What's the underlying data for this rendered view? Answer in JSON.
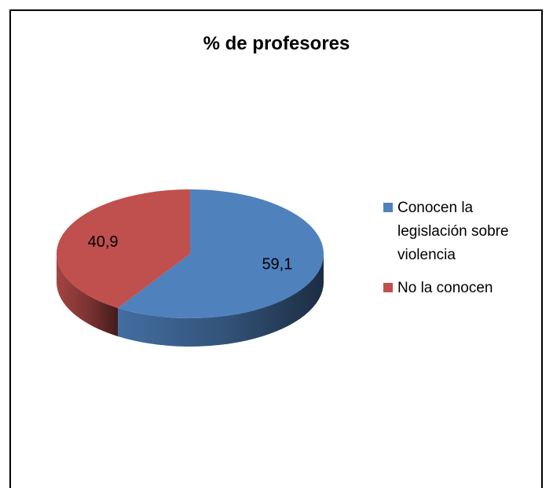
{
  "chart_data": {
    "type": "pie",
    "title": "% de profesores",
    "categories": [
      "Conocen la legislación sobre violencia",
      "No la conocen"
    ],
    "values": [
      59.1,
      40.9
    ],
    "value_labels": [
      "59,1",
      "40,9"
    ],
    "colors": [
      "#4f81bd",
      "#c0504d"
    ],
    "legend": "right"
  }
}
